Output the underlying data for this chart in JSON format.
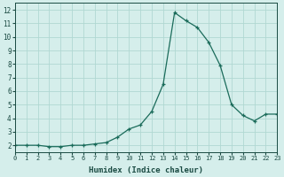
{
  "x": [
    0,
    1,
    2,
    3,
    4,
    5,
    6,
    7,
    8,
    9,
    10,
    11,
    12,
    13,
    14,
    15,
    16,
    17,
    18,
    19,
    20,
    21,
    22,
    23
  ],
  "y": [
    2.0,
    2.0,
    2.0,
    1.9,
    1.9,
    2.0,
    2.0,
    2.1,
    2.2,
    2.6,
    3.2,
    3.5,
    4.5,
    6.5,
    11.8,
    11.2,
    10.7,
    9.6,
    7.9,
    5.0,
    4.2,
    3.8,
    4.3,
    4.3
  ],
  "xlabel": "Humidex (Indice chaleur)",
  "xlim": [
    0,
    23
  ],
  "ylim": [
    1.5,
    12.5
  ],
  "yticks": [
    2,
    3,
    4,
    5,
    6,
    7,
    8,
    9,
    10,
    11,
    12
  ],
  "xticks": [
    0,
    1,
    2,
    3,
    4,
    5,
    6,
    7,
    8,
    9,
    10,
    11,
    12,
    13,
    14,
    15,
    16,
    17,
    18,
    19,
    20,
    21,
    22,
    23
  ],
  "line_color": "#1a6b5a",
  "marker": "+",
  "bg_color": "#d5eeeb",
  "grid_color": "#b0d8d2",
  "text_color": "#1a4a42",
  "font_family": "monospace",
  "linewidth": 0.9,
  "markersize": 3.5
}
